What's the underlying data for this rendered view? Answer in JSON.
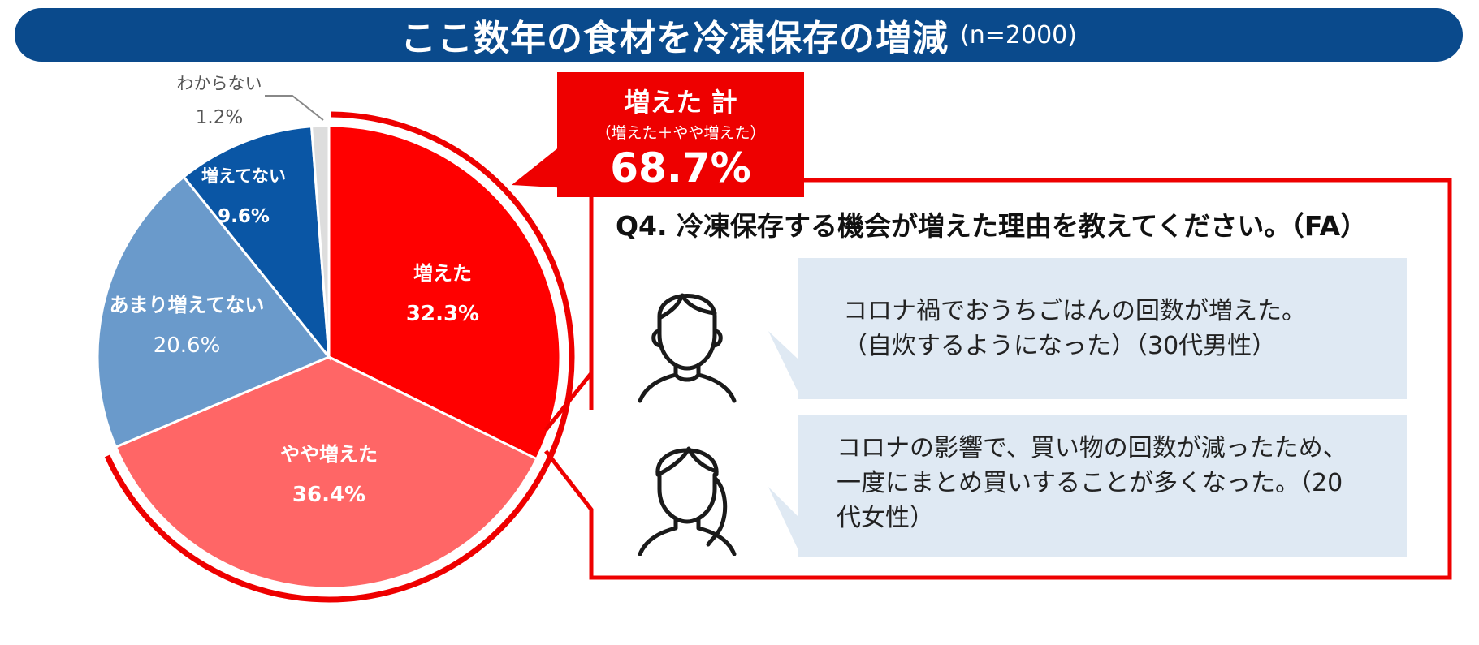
{
  "title": {
    "main": "ここ数年の食材を冷凍保存の増減",
    "n": "(n=2000)"
  },
  "total": {
    "label": "増えた 計",
    "sub": "（増えた＋やや増えた）",
    "value": "68.7%"
  },
  "question": "Q4. 冷凍保存する機会が増えた理由を教えてください。（FA）",
  "comments": [
    {
      "text": "コロナ禍でおうちごはんの回数が増えた。\n（自炊するようになった）（30代男性）",
      "avatar": "male-user-icon"
    },
    {
      "text": "コロナの影響で、買い物の回数が減ったため、\n一度にまとめ買いすることが多くなった。（20\n代女性）",
      "avatar": "female-user-icon"
    }
  ],
  "chart_data": {
    "type": "pie",
    "slices": [
      {
        "label": "増えた",
        "value": 32.3,
        "value_label": "32.3%",
        "color": "#ff0000"
      },
      {
        "label": "やや増えた",
        "value": 36.4,
        "value_label": "36.4%",
        "color": "#ff6666"
      },
      {
        "label": "あまり増えてない",
        "value": 20.6,
        "value_label": "20.6%",
        "color": "#6a9acb"
      },
      {
        "label": "増えてない",
        "value": 9.6,
        "value_label": "9.6%",
        "color": "#0a56a5"
      },
      {
        "label": "わからない",
        "value": 1.2,
        "value_label": "1.2%",
        "color": "#dddddd"
      }
    ]
  },
  "colors": {
    "accent": "#ee0000",
    "title_bg": "#0a4a8c",
    "bubble_bg": "#dfe9f3"
  }
}
